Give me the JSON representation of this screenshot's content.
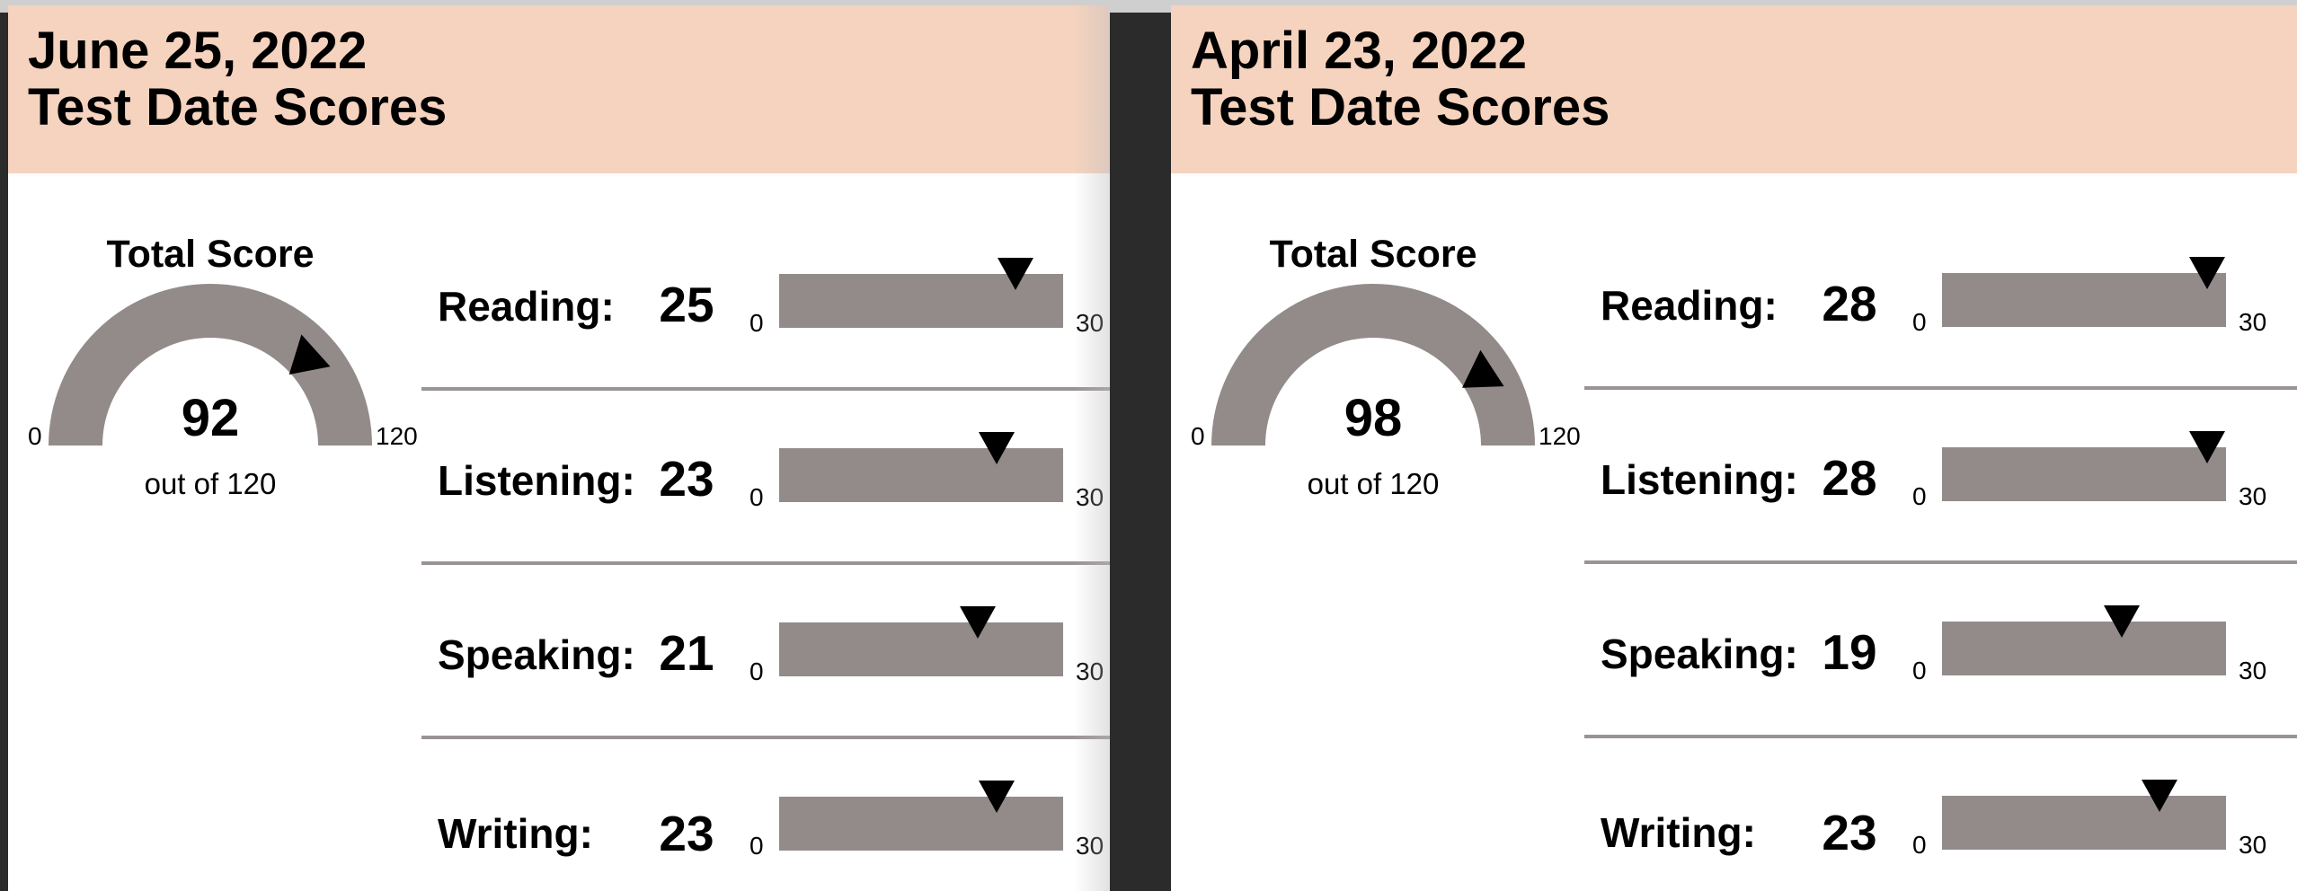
{
  "panels": [
    {
      "date": "June 25, 2022",
      "title": "Test Date Scores",
      "total": {
        "label": "Total Score",
        "value": "92",
        "out_of": "out of 120",
        "min": "0",
        "max": "120",
        "score": 92,
        "scale_max": 120
      },
      "sections": [
        {
          "label": "Reading:",
          "score": "25",
          "min": "0",
          "max": "30",
          "value": 25,
          "scale_max": 30
        },
        {
          "label": "Listening:",
          "score": "23",
          "min": "0",
          "max": "30",
          "value": 23,
          "scale_max": 30
        },
        {
          "label": "Speaking:",
          "score": "21",
          "min": "0",
          "max": "30",
          "value": 21,
          "scale_max": 30
        },
        {
          "label": "Writing:",
          "score": "23",
          "min": "0",
          "max": "30",
          "value": 23,
          "scale_max": 30
        }
      ]
    },
    {
      "date": "April 23, 2022",
      "title": "Test Date Scores",
      "total": {
        "label": "Total Score",
        "value": "98",
        "out_of": "out of 120",
        "min": "0",
        "max": "120",
        "score": 98,
        "scale_max": 120
      },
      "sections": [
        {
          "label": "Reading:",
          "score": "28",
          "min": "0",
          "max": "30",
          "value": 28,
          "scale_max": 30
        },
        {
          "label": "Listening:",
          "score": "28",
          "min": "0",
          "max": "30",
          "value": 28,
          "scale_max": 30
        },
        {
          "label": "Speaking:",
          "score": "19",
          "min": "0",
          "max": "30",
          "value": 19,
          "scale_max": 30
        },
        {
          "label": "Writing:",
          "score": "23",
          "min": "0",
          "max": "30",
          "value": 23,
          "scale_max": 30
        }
      ]
    }
  ],
  "colors": {
    "header_bg": "#f5d3be",
    "bar": "#928b89",
    "marker": "#000000",
    "divider": "#9a9394"
  }
}
